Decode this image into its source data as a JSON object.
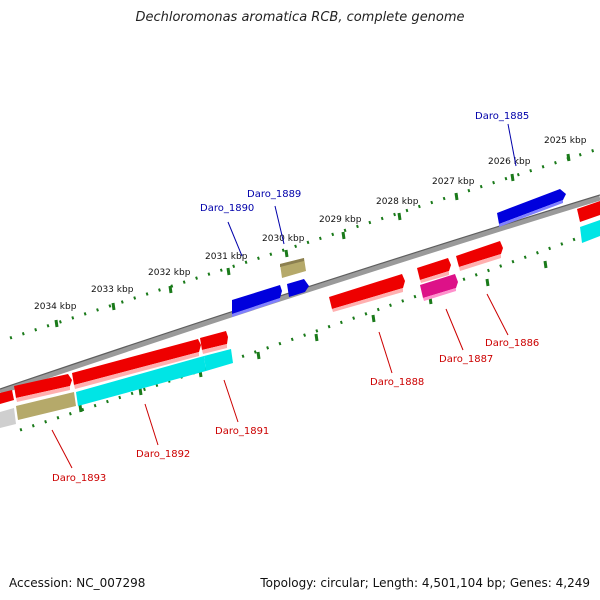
{
  "title": "Dechloromonas aromatica RCB, complete genome",
  "footer": {
    "accession": "Accession: NC_007298",
    "summary": "Topology: circular; Length: 4,501,104 bp; Genes: 4,249"
  },
  "colors": {
    "red_gene": "#ee0000",
    "blue_gene": "#0000dd",
    "cyan_gene": "#00e5e5",
    "olive_gene": "#b5a96a",
    "magenta_gene": "#dd1188",
    "tick_green": "#1a7a1a",
    "backbone": "#888888",
    "label_red": "#cc0000",
    "label_blue": "#0000aa"
  },
  "ticks": [
    "2034 kbp",
    "2033 kbp",
    "2032 kbp",
    "2031 kbp",
    "2030 kbp",
    "2029 kbp",
    "2028 kbp",
    "2027 kbp",
    "2026 kbp",
    "2025 kbp"
  ],
  "genes": {
    "top": [
      "Daro_1885",
      "Daro_1889",
      "Daro_1890"
    ],
    "bottom": [
      "Daro_1886",
      "Daro_1887",
      "Daro_1888",
      "Daro_1891",
      "Daro_1892",
      "Daro_1893"
    ]
  }
}
